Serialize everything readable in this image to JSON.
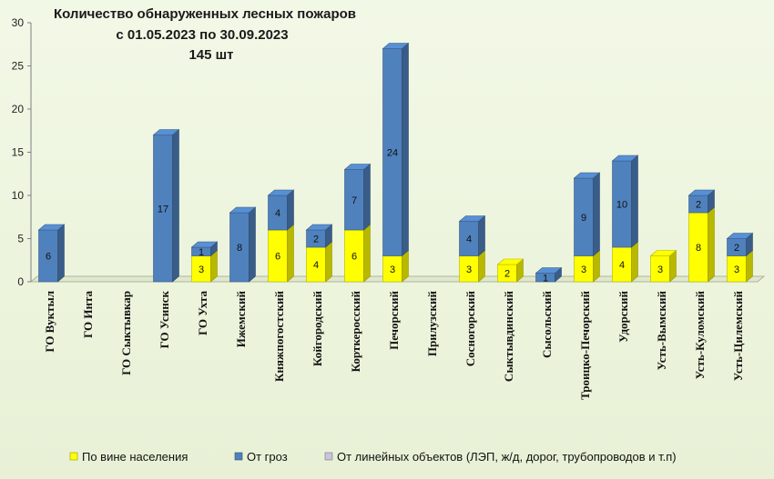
{
  "chart_data": {
    "type": "bar",
    "stacked": true,
    "three_d": true,
    "title_lines": [
      "Количество обнаруженных лесных пожаров",
      "с 01.05.2023  по  30.09.2023",
      "145 шт"
    ],
    "xlabel": "",
    "ylabel": "",
    "ylim": [
      0,
      30
    ],
    "yticks": [
      0,
      5,
      10,
      15,
      20,
      25,
      30
    ],
    "grid": false,
    "legend_position": "bottom",
    "categories": [
      "ГО Вуктыл",
      "ГО Инта",
      "ГО Сыктывкар",
      "ГО Усинск",
      "ГО Ухта",
      "Ижемский",
      "Княжпогостский",
      "Койгородский",
      "Корткеросский",
      "Печорский",
      "Прилузский",
      "Сосногорский",
      "Сыктывдинский",
      "Сысольский",
      "Троицко-Печорский",
      "Удорский",
      "Усть-Вымский",
      "Усть-Куломский",
      "Усть-Цилемский"
    ],
    "series": [
      {
        "name": "По вине населения",
        "color": "#ffff00",
        "values": [
          0,
          0,
          0,
          0,
          3,
          0,
          6,
          4,
          6,
          3,
          0,
          3,
          2,
          0,
          3,
          4,
          3,
          8,
          3
        ]
      },
      {
        "name": "От гроз",
        "color": "#4f81bd",
        "values": [
          6,
          0,
          0,
          17,
          1,
          8,
          4,
          2,
          7,
          24,
          0,
          4,
          0,
          1,
          9,
          10,
          0,
          2,
          2
        ]
      },
      {
        "name": "От линейных объектов (ЛЭП, ж/д, дорог,  трубопроводов  и т.п)",
        "color": "#c9c3dc",
        "values": [
          0,
          0,
          0,
          0,
          0,
          0,
          0,
          0,
          0,
          0,
          0,
          0,
          0,
          0,
          0,
          0,
          0,
          0,
          0
        ]
      }
    ]
  }
}
